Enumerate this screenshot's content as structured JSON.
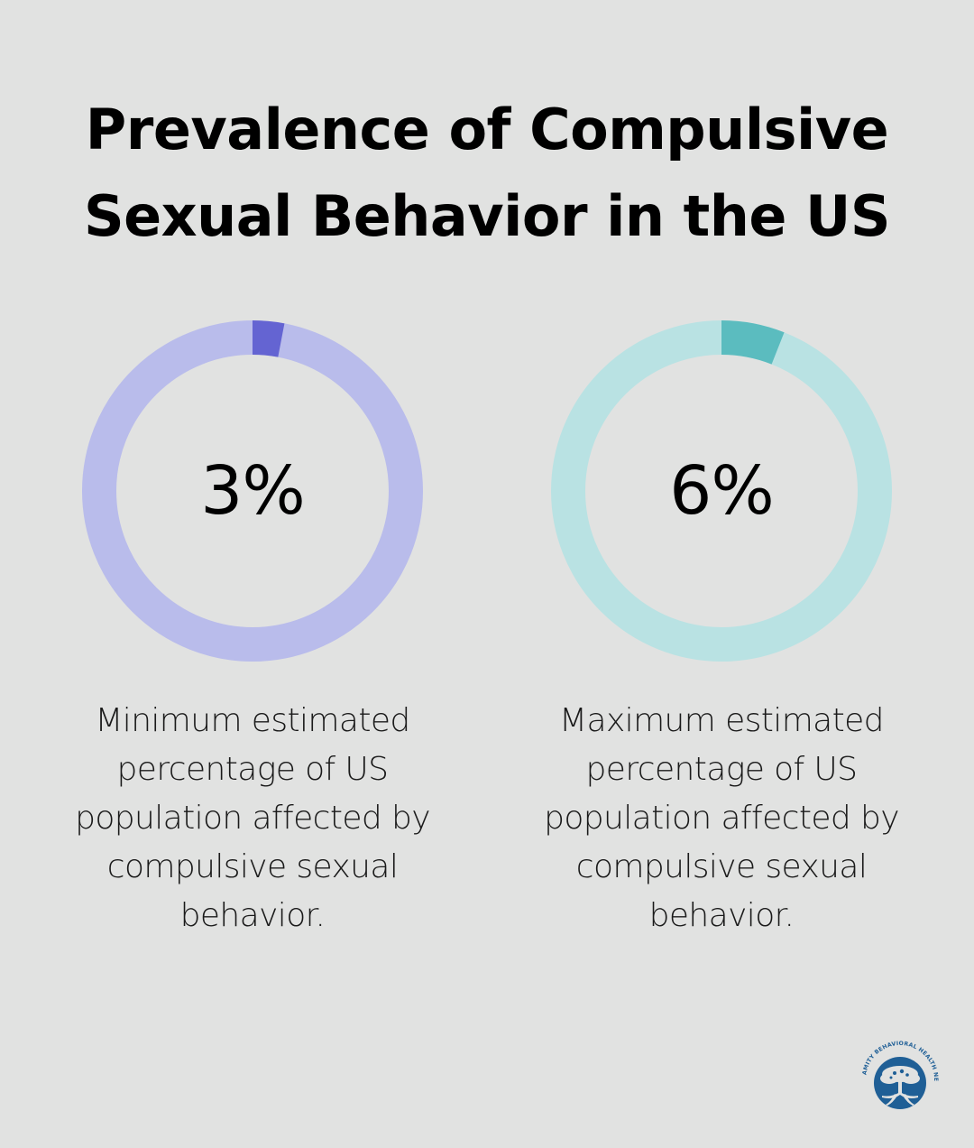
{
  "title": {
    "line1": "Prevalence of Compulsive",
    "line2": "Sexual Behavior in the US"
  },
  "colors": {
    "background": "#e1e2e1",
    "donut1_fill": "#6464d2",
    "donut1_track": "#b9bceb",
    "donut2_fill": "#5bbcbf",
    "donut2_track": "#b9e2e3",
    "logo": "#1f5f96"
  },
  "chart_data": [
    {
      "type": "pie",
      "variant": "donut",
      "value_label": "3%",
      "value": 3,
      "max": 100,
      "description": "Minimum estimated percentage of US population affected by compulsive sexual behavior."
    },
    {
      "type": "pie",
      "variant": "donut",
      "value_label": "6%",
      "value": 6,
      "max": 100,
      "description": "Maximum estimated percentage of US population affected by compulsive sexual behavior."
    }
  ],
  "logo": {
    "text": "AMITY BEHAVIORAL HEALTH NETWORK",
    "icon": "tree-icon"
  }
}
